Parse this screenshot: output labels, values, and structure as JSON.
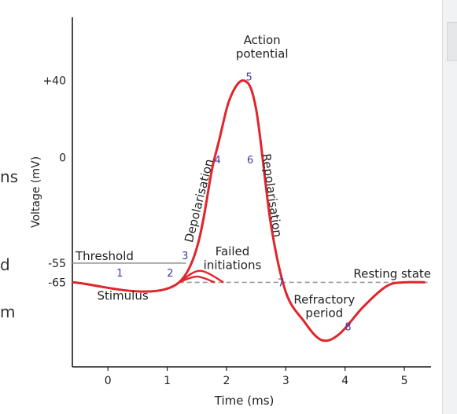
{
  "page_fragments": [
    "ns",
    "d",
    "m"
  ],
  "chart_data": {
    "type": "line",
    "title": "",
    "xlabel": "Time (ms)",
    "ylabel": "Voltage (mV)",
    "xlim": [
      -0.6,
      5.45
    ],
    "ylim": [
      -109,
      73
    ],
    "xticks": [
      0,
      1,
      2,
      3,
      4,
      5
    ],
    "yticks": [
      {
        "value": 40,
        "label": "+40"
      },
      {
        "value": 0,
        "label": "0"
      },
      {
        "value": -55,
        "label": "-55"
      },
      {
        "value": -65,
        "label": "-65"
      }
    ],
    "series": [
      {
        "color": "#e0252b",
        "x": [
          -0.6,
          1.2,
          1.8,
          2.05,
          2.3,
          2.5,
          2.75,
          3.0,
          3.3,
          3.6,
          3.9,
          4.3,
          4.7,
          5.0,
          5.35
        ],
        "y": [
          -65,
          -65,
          0,
          30,
          40,
          25,
          -35,
          -70,
          -85,
          -95,
          -92,
          -78,
          -67,
          -65,
          -65
        ]
      }
    ],
    "failed_initiations": [
      {
        "x": [
          1.2,
          1.5,
          1.8
        ],
        "y": [
          -65,
          -62,
          -65
        ]
      },
      {
        "x": [
          1.2,
          1.55,
          1.95
        ],
        "y": [
          -65,
          -59,
          -65
        ]
      }
    ],
    "threshold": {
      "value": -55,
      "label": "Threshold",
      "color": "#9a9a9a"
    },
    "resting": {
      "value": -65,
      "label": "Resting state",
      "color": "#9a9a9a"
    },
    "annotations": {
      "action_potential": [
        "Action",
        "potential"
      ],
      "depolarisation": "Depolarisation",
      "repolarisation": "Repolarisation",
      "failed": [
        "Failed",
        "initiations"
      ],
      "stimulus": "Stimulus",
      "refractory": [
        "Refractory",
        "period"
      ]
    },
    "point_labels": [
      {
        "text": "1",
        "x": 0.2,
        "y": -62
      },
      {
        "text": "2",
        "x": 1.05,
        "y": -62
      },
      {
        "text": "3",
        "x": 1.3,
        "y": -53
      },
      {
        "text": "4",
        "x": 1.85,
        "y": -3
      },
      {
        "text": "5",
        "x": 2.38,
        "y": 40
      },
      {
        "text": "6",
        "x": 2.4,
        "y": -3
      },
      {
        "text": "7",
        "x": 2.92,
        "y": -67
      },
      {
        "text": "8",
        "x": 4.05,
        "y": -90
      }
    ],
    "grid": false,
    "colors": {
      "curve": "#e0252b",
      "numbers": "#3d3aa6"
    }
  }
}
